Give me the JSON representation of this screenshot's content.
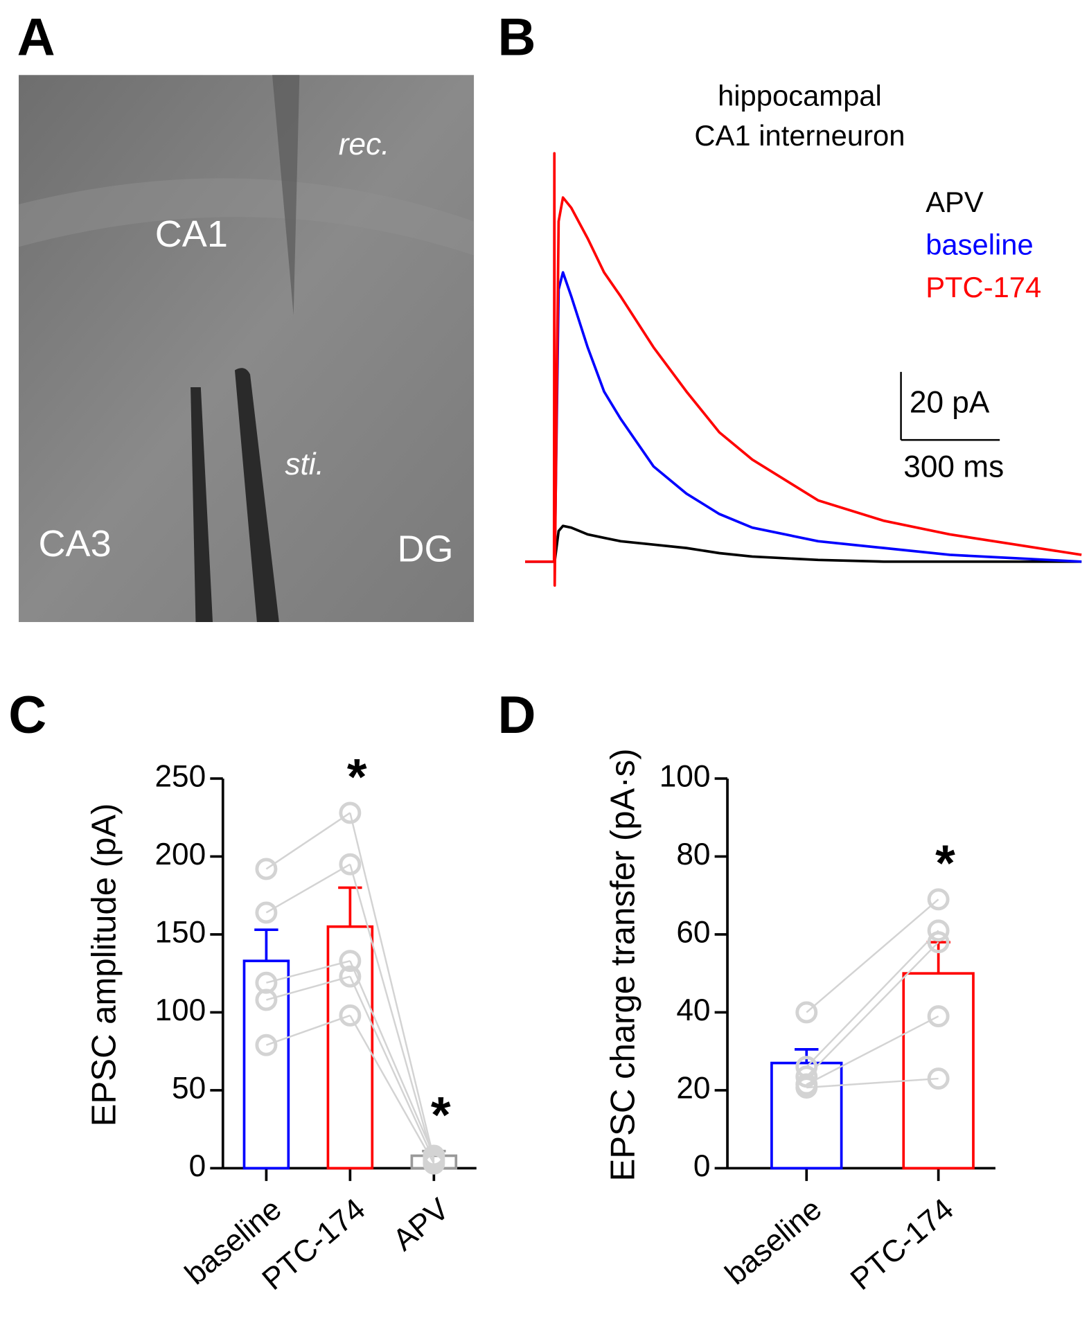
{
  "panel_a": {
    "letter": "A",
    "labels": [
      "CA1",
      "rec.",
      "sti.",
      "CA3",
      "DG"
    ]
  },
  "chart_data": [
    {
      "type": "trace",
      "letter": "B",
      "title": [
        "hippocampal",
        "CA1 interneuron"
      ],
      "x": [
        -90,
        -2,
        -1,
        0,
        12,
        25,
        50,
        100,
        150,
        200,
        300,
        400,
        500,
        600,
        800,
        1000,
        1200,
        1400,
        1600
      ],
      "series": [
        {
          "name": "APV",
          "color": "#000000",
          "values": [
            0,
            0,
            0,
            0,
            9,
            10.5,
            10,
            8,
            7,
            6,
            5,
            4,
            2.5,
            1.5,
            0.5,
            0,
            0,
            0,
            0
          ]
        },
        {
          "name": "baseline",
          "color": "#0000ff",
          "values": [
            0,
            0,
            0,
            0,
            80,
            85,
            78,
            63,
            50,
            42,
            28,
            20,
            14,
            10,
            6,
            4,
            2,
            1,
            0
          ]
        },
        {
          "name": "PTC-174",
          "color": "#ff0000",
          "values": [
            0,
            0,
            120,
            -7,
            100,
            107,
            104,
            95,
            85,
            78,
            63,
            50,
            38,
            30,
            18,
            12,
            8,
            5,
            2
          ]
        }
      ],
      "scale_bar": {
        "y": {
          "value": 20,
          "label": "20 pA"
        },
        "x": {
          "value": 300,
          "label": "300 ms"
        }
      }
    },
    {
      "type": "bar",
      "letter": "C",
      "ylabel": "EPSC amplitude (pA)",
      "categories": [
        "baseline",
        "PTC-174",
        "APV"
      ],
      "values": [
        133,
        155,
        8
      ],
      "errors": [
        20,
        25,
        3
      ],
      "colors": [
        "#0000ff",
        "#ff0000",
        "#999999"
      ],
      "individual": [
        [
          192,
          228,
          6
        ],
        [
          164,
          195,
          4
        ],
        [
          119,
          133,
          8
        ],
        [
          108,
          123,
          5
        ],
        [
          79,
          98,
          3
        ]
      ],
      "individual_color": "#d3d3d3",
      "significance": [
        null,
        "*",
        "*"
      ],
      "ylim": [
        0,
        250
      ],
      "yticks": [
        0,
        50,
        100,
        150,
        200,
        250
      ]
    },
    {
      "type": "bar",
      "letter": "D",
      "ylabel": "EPSC charge transfer (pA·s)",
      "categories": [
        "baseline",
        "PTC-174"
      ],
      "values": [
        27,
        50
      ],
      "errors": [
        3.5,
        8
      ],
      "colors": [
        "#0000ff",
        "#ff0000"
      ],
      "individual": [
        [
          40,
          69
        ],
        [
          26,
          61
        ],
        [
          23.5,
          58
        ],
        [
          21.5,
          39
        ],
        [
          20.7,
          23
        ]
      ],
      "individual_color": "#d3d3d3",
      "significance": [
        null,
        "*"
      ],
      "ylim": [
        0,
        100
      ],
      "yticks": [
        0,
        20,
        40,
        60,
        80,
        100
      ]
    }
  ]
}
